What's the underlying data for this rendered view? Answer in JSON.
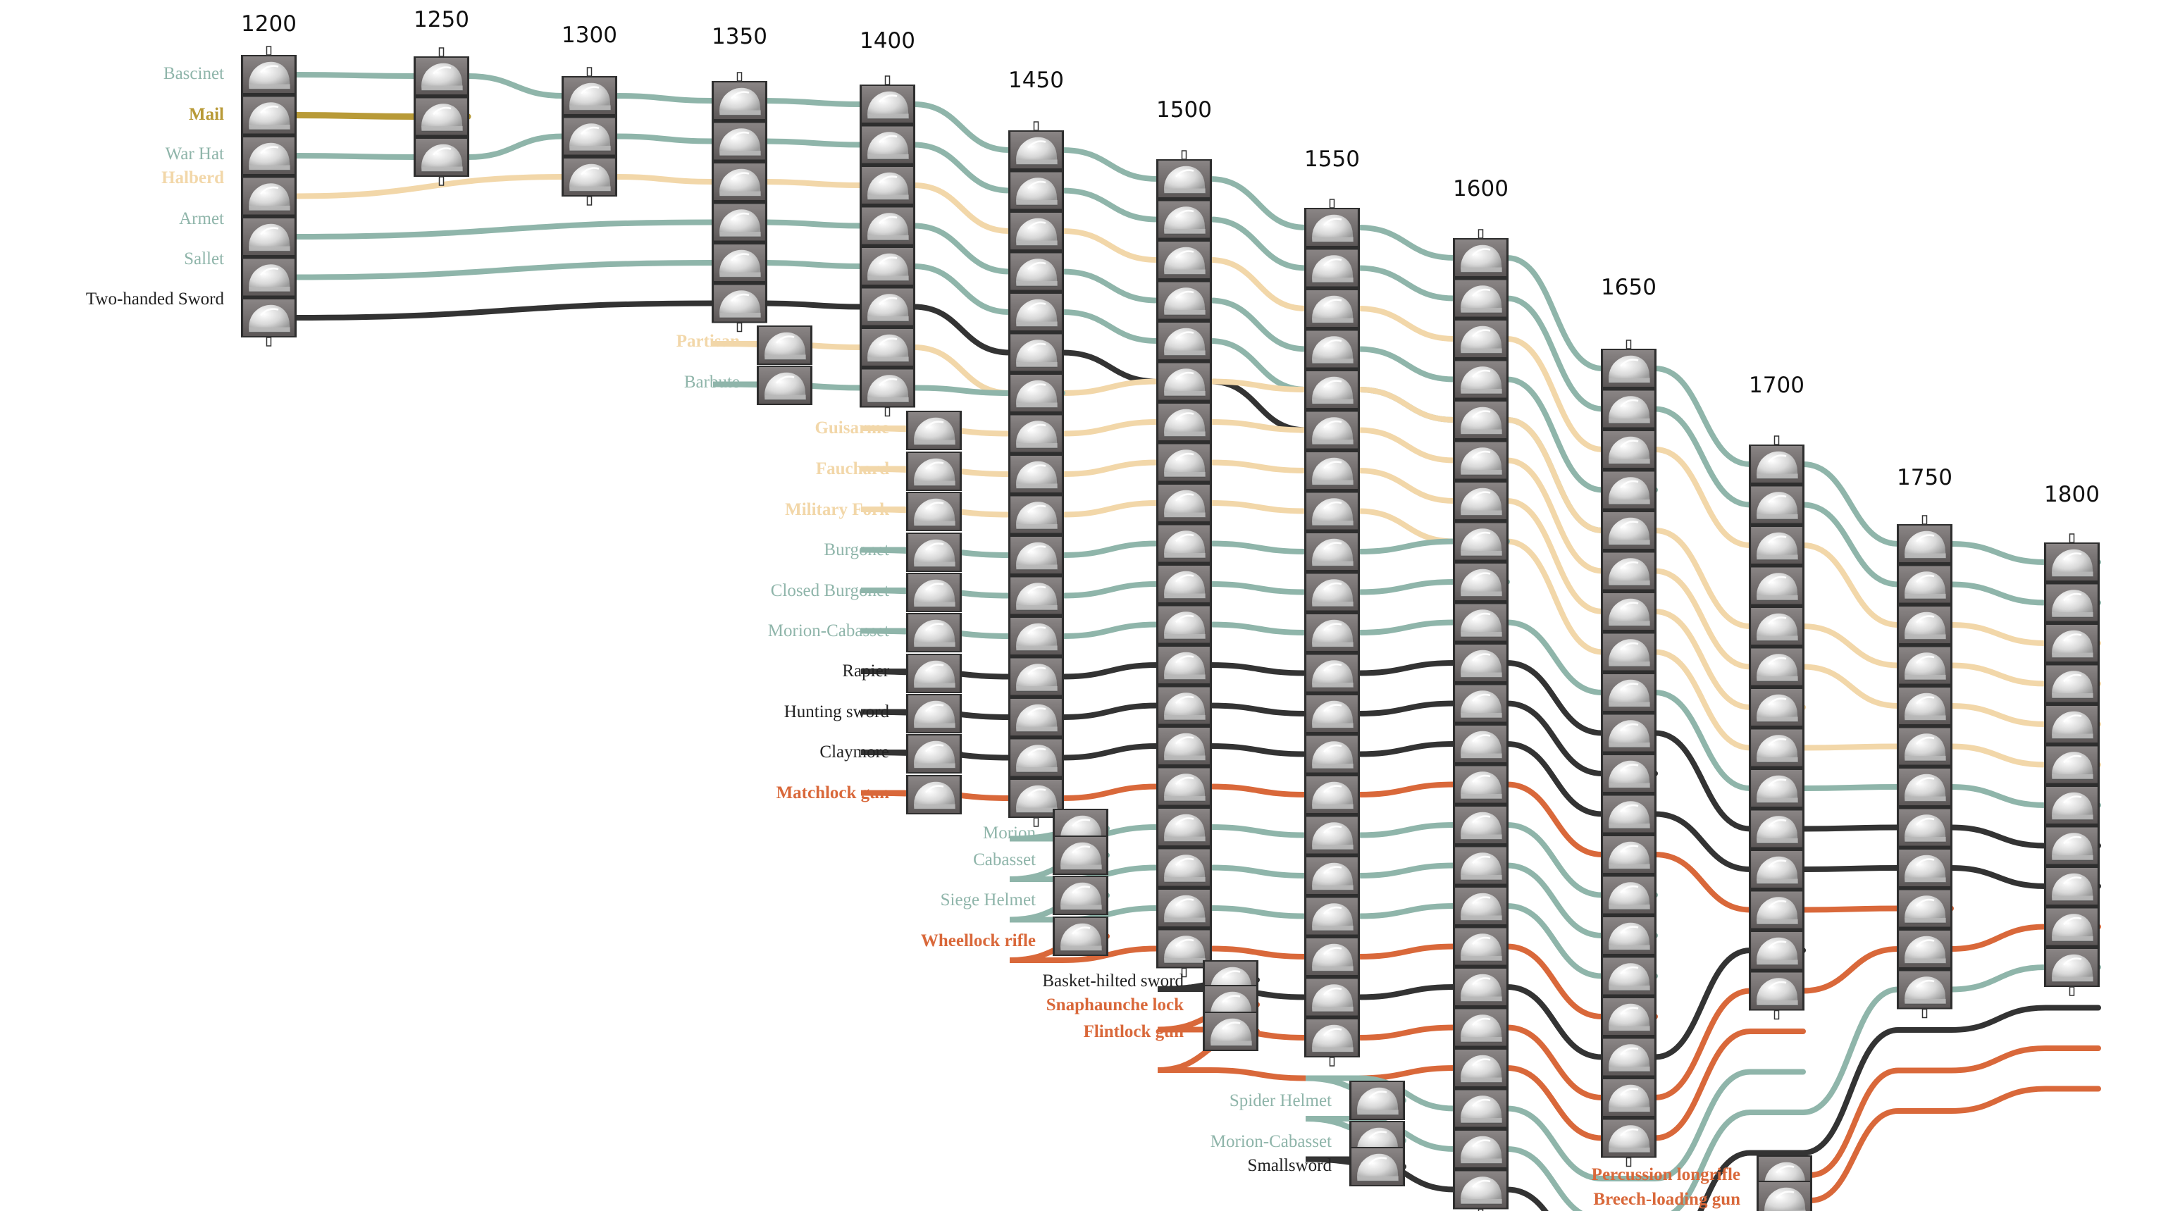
{
  "colors": {
    "armor": "#8fb5aa",
    "pole": "#f2d7a9",
    "sword": "#333333",
    "gun": "#d9683a",
    "mail": "#b89a37",
    "icon_dark": "#6e6a6a",
    "icon_light": "#dcdcdc"
  },
  "years": [
    "1200",
    "1250",
    "1300",
    "1350",
    "1400",
    "1450",
    "1500",
    "1550",
    "1600",
    "1650",
    "1700",
    "1750",
    "1800"
  ],
  "items": [
    {
      "name": "Bascinet",
      "cat": "armor",
      "start": "1200",
      "end": "1800"
    },
    {
      "name": "Mail",
      "cat": "mail",
      "start": "1200",
      "end": "1250"
    },
    {
      "name": "War Hat",
      "cat": "armor",
      "start": "1200",
      "end": "1800"
    },
    {
      "name": "Halberd",
      "cat": "pole",
      "start": "1200",
      "end": "1800"
    },
    {
      "name": "Armet",
      "cat": "armor",
      "start": "1200",
      "end": "1650"
    },
    {
      "name": "Sallet",
      "cat": "armor",
      "start": "1200",
      "end": "1650"
    },
    {
      "name": "Two-handed Sword",
      "cat": "sword",
      "start": "1200",
      "end": "1550"
    },
    {
      "name": "Partisan",
      "cat": "pole",
      "start": "1350",
      "end": "1800"
    },
    {
      "name": "Barbute",
      "cat": "armor",
      "start": "1350",
      "end": "1450"
    },
    {
      "name": "Guisarme",
      "cat": "pole",
      "start": "1400",
      "end": "1800"
    },
    {
      "name": "Fauchard",
      "cat": "pole",
      "start": "1400",
      "end": "1700"
    },
    {
      "name": "Military Fork",
      "cat": "pole",
      "start": "1400",
      "end": "1800"
    },
    {
      "name": "Burgonet",
      "cat": "armor",
      "start": "1400",
      "end": "1600"
    },
    {
      "name": "Closed Burgonet",
      "cat": "armor",
      "start": "1400",
      "end": "1600"
    },
    {
      "name": "Morion-Cabasset",
      "cat": "armor",
      "start": "1400",
      "end": "1800"
    },
    {
      "name": "Rapier",
      "cat": "sword",
      "start": "1400",
      "end": "1800"
    },
    {
      "name": "Hunting sword",
      "cat": "sword",
      "start": "1400",
      "end": "1650"
    },
    {
      "name": "Claymore",
      "cat": "sword",
      "start": "1400",
      "end": "1800"
    },
    {
      "name": "Matchlock gun",
      "cat": "gun",
      "start": "1400",
      "end": "1750"
    },
    {
      "name": "Morion",
      "cat": "armor",
      "start": "1450",
      "end": "1650"
    },
    {
      "name": "Cabasset",
      "cat": "armor",
      "start": "1450",
      "end": "1650"
    },
    {
      "name": "Siege Helmet",
      "cat": "armor",
      "start": "1450",
      "end": "1650"
    },
    {
      "name": "Wheellock rifle",
      "cat": "gun",
      "start": "1450",
      "end": "1650"
    },
    {
      "name": "Basket-hilted sword",
      "cat": "sword",
      "start": "1500",
      "end": "1700"
    },
    {
      "name": "Snaphaunche lock",
      "cat": "gun",
      "start": "1500",
      "end": "1800"
    },
    {
      "name": "Flintlock gun",
      "cat": "gun",
      "start": "1500",
      "end": "1700"
    },
    {
      "name": "Spider Helmet",
      "cat": "armor",
      "start": "1550",
      "end": "1700"
    },
    {
      "name": "Morion-Cabasset",
      "cat": "armor",
      "start": "1550",
      "end": "1800"
    },
    {
      "name": "Smallsword",
      "cat": "sword",
      "start": "1550",
      "end": "1800"
    },
    {
      "name": "Percussion longrifle",
      "cat": "gun",
      "start": "1750",
      "end": "1800"
    },
    {
      "name": "Breech-loading gun",
      "cat": "gun",
      "start": "1750",
      "end": "1800"
    }
  ]
}
